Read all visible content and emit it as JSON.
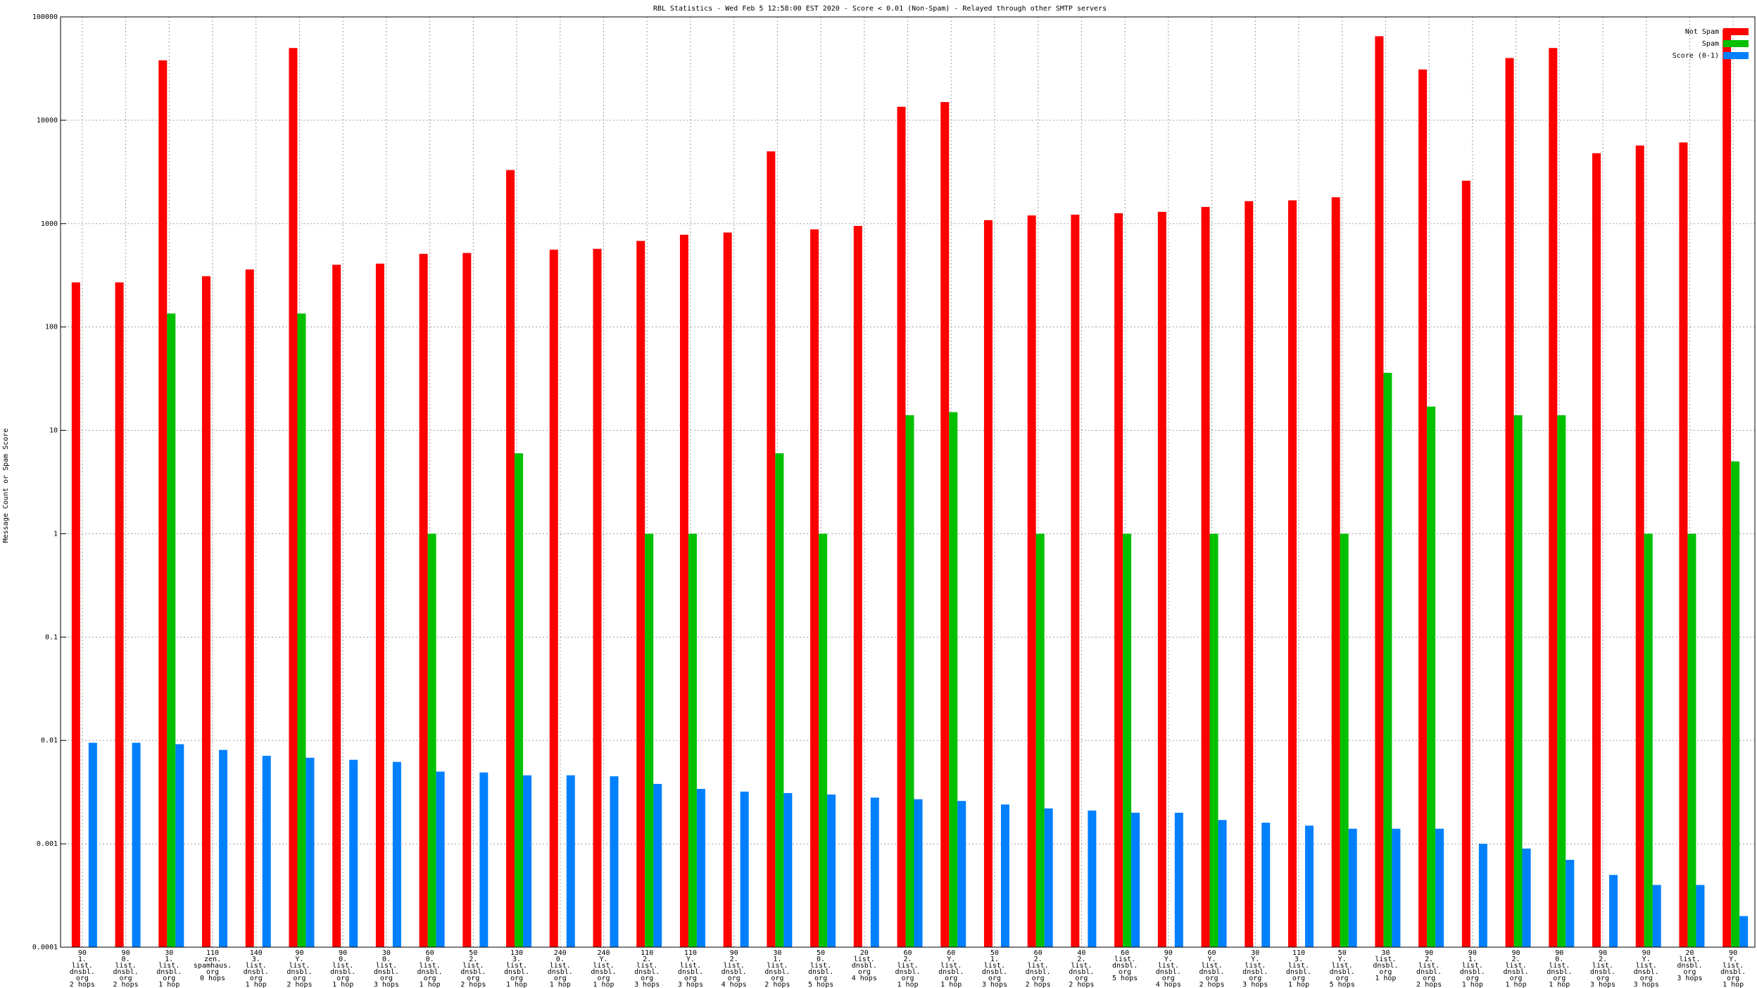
{
  "chart_data": {
    "type": "bar",
    "title": "RBL Statistics - Wed Feb  5 12:58:00 EST 2020 - Score < 0.01 (Non-Spam) - Relayed through other SMTP servers",
    "y_label": "Message Count or Spam Score",
    "log_scale": true,
    "grid": true,
    "legend_position": "top-right",
    "ylim": [
      0.0001,
      100000
    ],
    "yticks": [
      0.0001,
      0.001,
      0.01,
      0.1,
      1,
      10,
      100,
      1000,
      10000,
      100000
    ],
    "categories": [
      [
        "90",
        "1.",
        "list.",
        "dnsbl.",
        "org",
        "2 hops"
      ],
      [
        "90",
        "0.",
        "list.",
        "dnsbl.",
        "org",
        "2 hops"
      ],
      [
        "30",
        "1.",
        "list.",
        "dnsbl.",
        "org",
        "1 hop"
      ],
      [
        "110",
        "zen.",
        "spamhaus.",
        "org",
        "0 hops"
      ],
      [
        "140",
        "3.",
        "list.",
        "dnsbl.",
        "org",
        "1 hop"
      ],
      [
        "90",
        "Y.",
        "list.",
        "dnsbl.",
        "org",
        "2 hops"
      ],
      [
        "90",
        "0.",
        "list.",
        "dnsbl.",
        "org",
        "1 hop"
      ],
      [
        "30",
        "0.",
        "list.",
        "dnsbl.",
        "org",
        "3 hops"
      ],
      [
        "60",
        "0.",
        "list.",
        "dnsbl.",
        "org",
        "1 hop"
      ],
      [
        "50",
        "2.",
        "list.",
        "dnsbl.",
        "org",
        "2 hops"
      ],
      [
        "130",
        "3.",
        "list.",
        "dnsbl.",
        "org",
        "1 hop"
      ],
      [
        "240",
        "0.",
        "list.",
        "dnsbl.",
        "org",
        "1 hop"
      ],
      [
        "240",
        "Y.",
        "list.",
        "dnsbl.",
        "org",
        "1 hop"
      ],
      [
        "110",
        "2.",
        "list.",
        "dnsbl.",
        "org",
        "3 hops"
      ],
      [
        "110",
        "Y.",
        "list.",
        "dnsbl.",
        "org",
        "3 hops"
      ],
      [
        "90",
        "2.",
        "list.",
        "dnsbl.",
        "org",
        "4 hops"
      ],
      [
        "30",
        "1.",
        "list.",
        "dnsbl.",
        "org",
        "2 hops"
      ],
      [
        "50",
        "0.",
        "list.",
        "dnsbl.",
        "org",
        "5 hops"
      ],
      [
        "20",
        "list.",
        "dnsbl.",
        "org",
        "4 hops"
      ],
      [
        "60",
        "2.",
        "list.",
        "dnsbl.",
        "org",
        "1 hop"
      ],
      [
        "60",
        "Y.",
        "list.",
        "dnsbl.",
        "org",
        "1 hop"
      ],
      [
        "50",
        "1.",
        "list.",
        "dnsbl.",
        "org",
        "3 hops"
      ],
      [
        "60",
        "2.",
        "list.",
        "dnsbl.",
        "org",
        "2 hops"
      ],
      [
        "40",
        "2.",
        "list.",
        "dnsbl.",
        "org",
        "2 hops"
      ],
      [
        "60",
        "list.",
        "dnsbl.",
        "org",
        "5 hops"
      ],
      [
        "90",
        "Y.",
        "list.",
        "dnsbl.",
        "org",
        "4 hops"
      ],
      [
        "60",
        "Y.",
        "list.",
        "dnsbl.",
        "org",
        "2 hops"
      ],
      [
        "30",
        "Y.",
        "list.",
        "dnsbl.",
        "org",
        "3 hops"
      ],
      [
        "110",
        "3.",
        "list.",
        "dnsbl.",
        "org",
        "1 hop"
      ],
      [
        "50",
        "Y.",
        "list.",
        "dnsbl.",
        "org",
        "5 hops"
      ],
      [
        "30",
        "list.",
        "dnsbl.",
        "org",
        "1 hop"
      ],
      [
        "90",
        "2.",
        "list.",
        "dnsbl.",
        "org",
        "2 hops"
      ],
      [
        "90",
        "1.",
        "list.",
        "dnsbl.",
        "org",
        "1 hop"
      ],
      [
        "90",
        "2.",
        "list.",
        "dnsbl.",
        "org",
        "1 hop"
      ],
      [
        "90",
        "0.",
        "list.",
        "dnsbl.",
        "org",
        "1 hop"
      ],
      [
        "90",
        "2.",
        "list.",
        "dnsbl.",
        "org",
        "3 hops"
      ],
      [
        "90",
        "Y.",
        "list.",
        "dnsbl.",
        "org",
        "3 hops"
      ],
      [
        "20",
        "list.",
        "dnsbl.",
        "org",
        "3 hops"
      ],
      [
        "90",
        "Y.",
        "list.",
        "dnsbl.",
        "org",
        "1 hop"
      ]
    ],
    "series": [
      {
        "name": "Not Spam",
        "color": "#ff0000",
        "values": [
          270,
          270,
          38000,
          310,
          360,
          50000,
          400,
          410,
          510,
          520,
          3300,
          560,
          570,
          680,
          780,
          820,
          5000,
          880,
          950,
          13500,
          15000,
          1080,
          1200,
          1220,
          1260,
          1300,
          1450,
          1650,
          1680,
          1800,
          65000,
          31000,
          2600,
          40000,
          50000,
          4800,
          5700,
          6100,
          75000
        ]
      },
      {
        "name": "Spam",
        "color": "#00c000",
        "values": [
          null,
          null,
          135,
          null,
          null,
          135,
          null,
          null,
          1,
          null,
          6,
          null,
          null,
          1,
          1,
          null,
          6,
          1,
          null,
          14,
          15,
          null,
          1,
          null,
          1,
          null,
          1,
          null,
          null,
          1,
          36,
          17,
          null,
          14,
          14,
          null,
          1,
          1,
          5
        ]
      },
      {
        "name": "Score (0-1)",
        "color": "#0080ff",
        "values": [
          0.0095,
          0.0095,
          0.0092,
          0.0081,
          0.0071,
          0.0068,
          0.0065,
          0.0062,
          0.005,
          0.0049,
          0.0046,
          0.0046,
          0.0045,
          0.0038,
          0.0034,
          0.0032,
          0.0031,
          0.003,
          0.0028,
          0.0027,
          0.0026,
          0.0024,
          0.0022,
          0.0021,
          0.002,
          0.002,
          0.0017,
          0.0016,
          0.0015,
          0.0014,
          0.0014,
          0.0014,
          0.001,
          0.0009,
          0.0007,
          0.0005,
          0.0004,
          0.0004,
          0.0002
        ]
      }
    ]
  }
}
